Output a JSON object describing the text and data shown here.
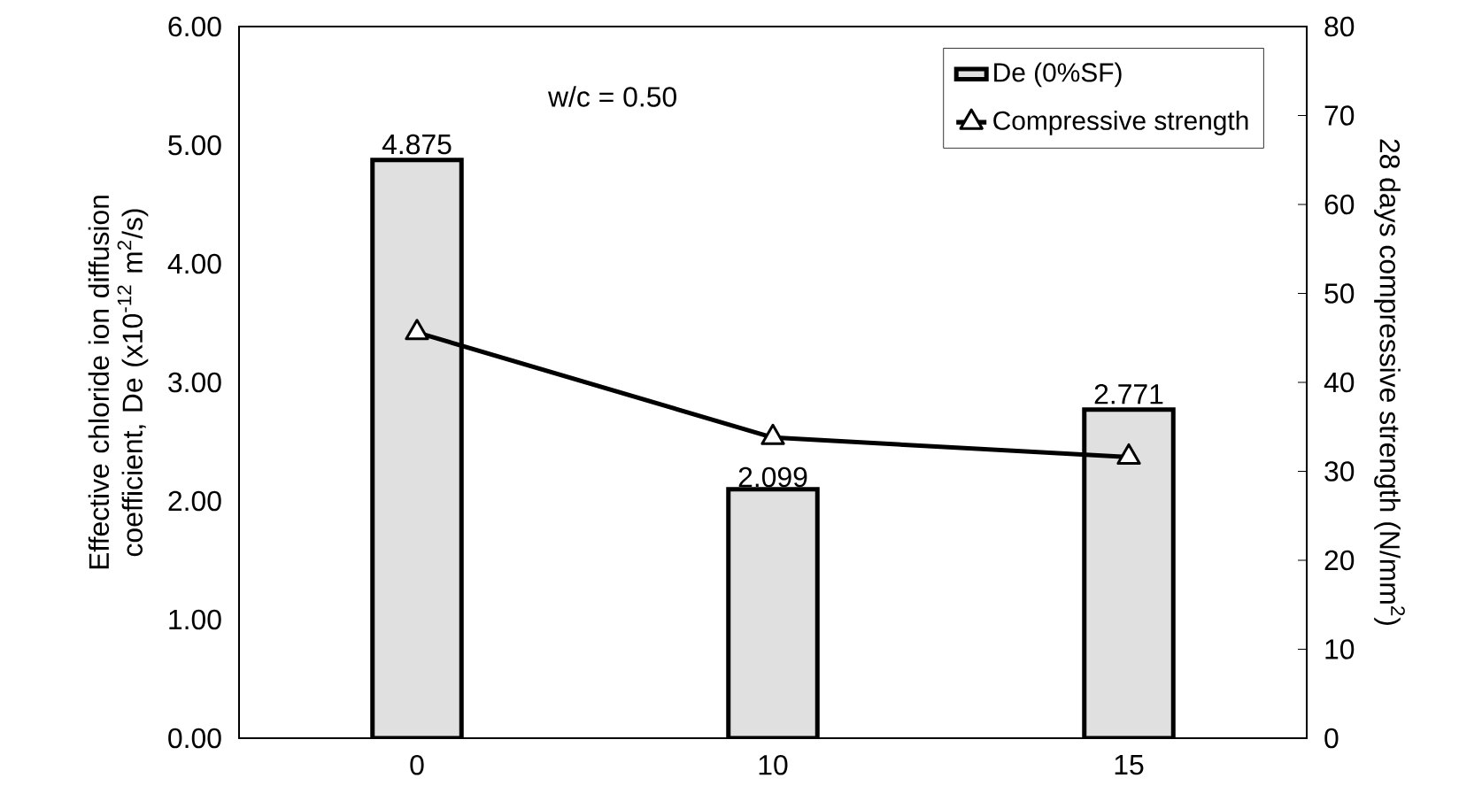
{
  "chart_data": {
    "type": "bar",
    "categories": [
      "0",
      "10",
      "15"
    ],
    "ylabel": "Effective chloride ion diffusion coefficient, De (x10$^{-12}$ m$^{2}$/s)",
    "y2label": "28 days compressive strength (N/mm$^{2}$)",
    "annotations": [
      "w/c = 0.50"
    ],
    "ylim": [
      0,
      6
    ],
    "yticks": [
      {
        "value": 0,
        "label": "0.00"
      },
      {
        "value": 1,
        "label": "1.00"
      },
      {
        "value": 2,
        "label": "2.00"
      },
      {
        "value": 3,
        "label": "3.00"
      },
      {
        "value": 4,
        "label": "4.00"
      },
      {
        "value": 5,
        "label": "5.00"
      },
      {
        "value": 6,
        "label": "6.00"
      }
    ],
    "y2lim": [
      0,
      80
    ],
    "y2ticks": [
      0,
      10,
      20,
      30,
      40,
      50,
      60,
      70,
      80
    ],
    "legend": "top right",
    "marker": "triangle",
    "line_style": "solid",
    "series": [
      {
        "name": "De (0%SF)",
        "color": "#e0e0e0",
        "values": [
          4.875,
          2.099,
          2.771
        ],
        "value_labels": [
          "4.875",
          "2.099",
          "2.771"
        ]
      },
      {
        "name": "Compressive strength",
        "type": "line",
        "axis": "y2",
        "color": "#000000",
        "values": [
          45.6,
          33.8,
          31.6
        ]
      }
    ]
  }
}
